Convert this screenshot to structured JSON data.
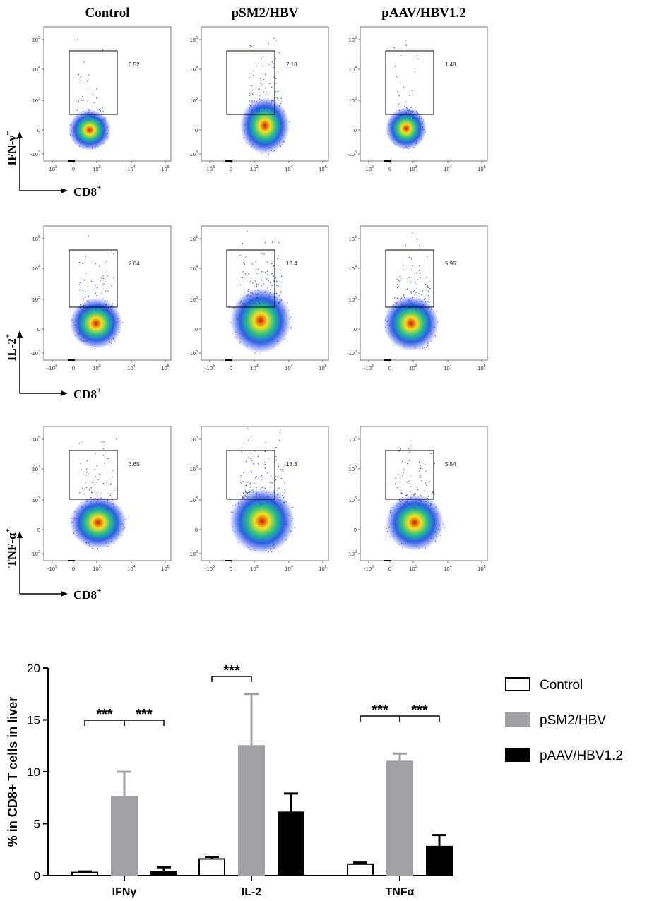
{
  "flow": {
    "columns": [
      "Control",
      "pSM2/HBV",
      "pAAV/HBV1.2"
    ],
    "x_axis_label": "CD8",
    "axis_superscript": "+",
    "rows": [
      {
        "cytokine": "IFN-γ",
        "gate_values": [
          "0.52",
          "7.18",
          "1.48"
        ]
      },
      {
        "cytokine": "IL-2",
        "gate_values": [
          "2.04",
          "10.4",
          "5.96"
        ]
      },
      {
        "cytokine": "TNF-α",
        "gate_values": [
          "3.65",
          "13.3",
          "5.54"
        ]
      }
    ],
    "ticks": {
      "y": [
        {
          "base": "10",
          "exp": "5"
        },
        {
          "base": "10",
          "exp": "4"
        },
        {
          "base": "10",
          "exp": "3"
        },
        {
          "base": "0",
          "exp": ""
        },
        {
          "base": "-10",
          "exp": "3"
        }
      ],
      "x": [
        {
          "base": "-10",
          "exp": "3"
        },
        {
          "base": "0",
          "exp": ""
        },
        {
          "base": "10",
          "exp": "3"
        },
        {
          "base": "10",
          "exp": "4"
        },
        {
          "base": "10",
          "exp": "5"
        }
      ]
    }
  },
  "chart_data": {
    "type": "bar",
    "title": "",
    "xlabel": "",
    "ylabel": "% in CD8+ T cells in liver",
    "ylim": [
      0,
      20
    ],
    "yticks": [
      "0",
      "5",
      "10",
      "15",
      "20"
    ],
    "categories": [
      "IFNγ",
      "IL-2",
      "TNFα"
    ],
    "series": [
      {
        "name": "Control",
        "color": "#ffffff",
        "values": [
          0.3,
          1.6,
          1.1
        ],
        "errors": [
          0.1,
          0.2,
          0.15
        ]
      },
      {
        "name": "pSM2/HBV",
        "color": "#a0a1a5",
        "values": [
          7.6,
          12.5,
          11.0
        ],
        "errors": [
          2.4,
          5.0,
          0.75
        ]
      },
      {
        "name": "pAAV/HBV1.2",
        "color": "#000000",
        "values": [
          0.4,
          6.1,
          2.8
        ],
        "errors": [
          0.4,
          1.8,
          1.1
        ]
      }
    ],
    "significance": [
      {
        "category": "IFNγ",
        "from": "Control",
        "to": "pSM2/HBV",
        "label": "***"
      },
      {
        "category": "IFNγ",
        "from": "pSM2/HBV",
        "to": "pAAV/HBV1.2",
        "label": "***"
      },
      {
        "category": "IL-2",
        "from": "Control",
        "to": "pSM2/HBV",
        "label": "***"
      },
      {
        "category": "TNFα",
        "from": "Control",
        "to": "pSM2/HBV",
        "label": "***"
      },
      {
        "category": "TNFα",
        "from": "pSM2/HBV",
        "to": "pAAV/HBV1.2",
        "label": "***"
      }
    ]
  }
}
